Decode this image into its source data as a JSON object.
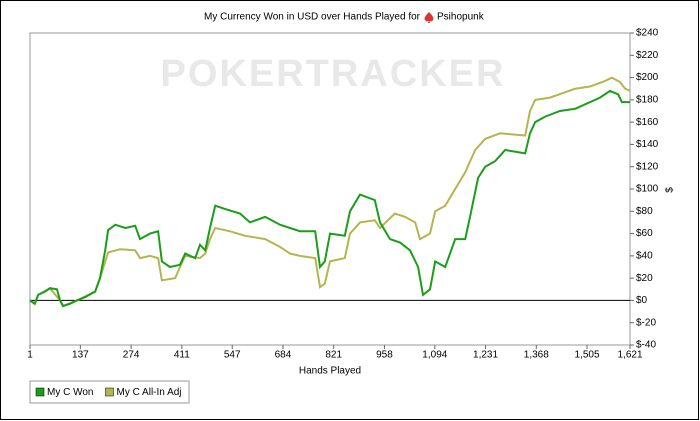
{
  "chart_data": {
    "type": "line",
    "title": "My Currency Won in USD over Hands Played for",
    "player": "Psihopunk",
    "watermark": "POKERTRACKER",
    "xlabel": "Hands Played",
    "ylabel": "$",
    "xlim": [
      1,
      1621
    ],
    "ylim": [
      -40,
      240
    ],
    "xticks": [
      1,
      137,
      274,
      411,
      547,
      684,
      821,
      958,
      {
        "value": 1094,
        "label": "1,094"
      },
      {
        "value": 1231,
        "label": "1,231"
      },
      {
        "value": 1368,
        "label": "1,368"
      },
      {
        "value": 1505,
        "label": "1,505"
      },
      {
        "value": 1621,
        "label": "1,621"
      }
    ],
    "yticks": [
      {
        "value": -40,
        "label": "$-40"
      },
      {
        "value": -20,
        "label": "$-20"
      },
      {
        "value": 0,
        "label": "$0"
      },
      {
        "value": 20,
        "label": "$20"
      },
      {
        "value": 40,
        "label": "$40"
      },
      {
        "value": 60,
        "label": "$60"
      },
      {
        "value": 80,
        "label": "$80"
      },
      {
        "value": 100,
        "label": "$100"
      },
      {
        "value": 120,
        "label": "$120"
      },
      {
        "value": 140,
        "label": "$140"
      },
      {
        "value": 160,
        "label": "$160"
      },
      {
        "value": 180,
        "label": "$180"
      },
      {
        "value": 200,
        "label": "$200"
      },
      {
        "value": 220,
        "label": "$220"
      },
      {
        "value": 240,
        "label": "$240"
      }
    ],
    "grid": false,
    "legend": "bottom-left",
    "series": [
      {
        "name": "My C Won",
        "color": "#1a9e1a",
        "x": [
          1,
          14,
          23,
          42,
          55,
          74,
          82,
          90,
          109,
          128,
          150,
          177,
          190,
          204,
          212,
          231,
          258,
          285,
          298,
          325,
          347,
          357,
          379,
          406,
          420,
          447,
          460,
          474,
          487,
          501,
          528,
          568,
          595,
          636,
          676,
          703,
          730,
          771,
          784,
          797,
          811,
          851,
          865,
          892,
          932,
          946,
          973,
          1000,
          1027,
          1049,
          1062,
          1081,
          1095,
          1122,
          1149,
          1176,
          1189,
          1211,
          1230,
          1257,
          1284,
          1338,
          1351,
          1365,
          1392,
          1432,
          1473,
          1513,
          1540,
          1567,
          1589,
          1599,
          1621
        ],
        "values": [
          0,
          -3,
          5,
          8,
          11,
          10,
          0,
          -5,
          -3,
          0,
          3,
          8,
          20,
          45,
          63,
          68,
          65,
          67,
          55,
          60,
          62,
          35,
          30,
          32,
          42,
          38,
          50,
          45,
          65,
          85,
          82,
          78,
          70,
          75,
          68,
          65,
          62,
          62,
          30,
          35,
          60,
          58,
          80,
          95,
          90,
          70,
          55,
          52,
          45,
          30,
          5,
          10,
          35,
          30,
          55,
          55,
          75,
          110,
          120,
          125,
          135,
          132,
          150,
          160,
          165,
          170,
          172,
          178,
          182,
          188,
          185,
          178,
          178
        ]
      },
      {
        "name": "My C All-In Adj",
        "color": "#b5b550",
        "x": [
          1,
          14,
          23,
          55,
          82,
          90,
          128,
          177,
          190,
          212,
          244,
          285,
          298,
          325,
          347,
          357,
          393,
          406,
          420,
          460,
          474,
          487,
          501,
          541,
          582,
          636,
          676,
          703,
          730,
          771,
          784,
          797,
          811,
          851,
          865,
          892,
          932,
          946,
          986,
          1014,
          1041,
          1054,
          1081,
          1095,
          1122,
          1149,
          1176,
          1203,
          1230,
          1270,
          1338,
          1351,
          1365,
          1405,
          1473,
          1513,
          1554,
          1572,
          1594,
          1608,
          1621
        ],
        "values": [
          0,
          -3,
          5,
          11,
          0,
          -5,
          0,
          8,
          20,
          43,
          46,
          45,
          38,
          40,
          38,
          18,
          20,
          30,
          40,
          38,
          42,
          55,
          65,
          62,
          58,
          55,
          48,
          42,
          40,
          38,
          12,
          15,
          35,
          38,
          60,
          70,
          72,
          65,
          78,
          75,
          70,
          55,
          60,
          80,
          85,
          100,
          115,
          135,
          145,
          150,
          148,
          170,
          180,
          182,
          190,
          192,
          197,
          200,
          196,
          190,
          188
        ]
      }
    ]
  }
}
